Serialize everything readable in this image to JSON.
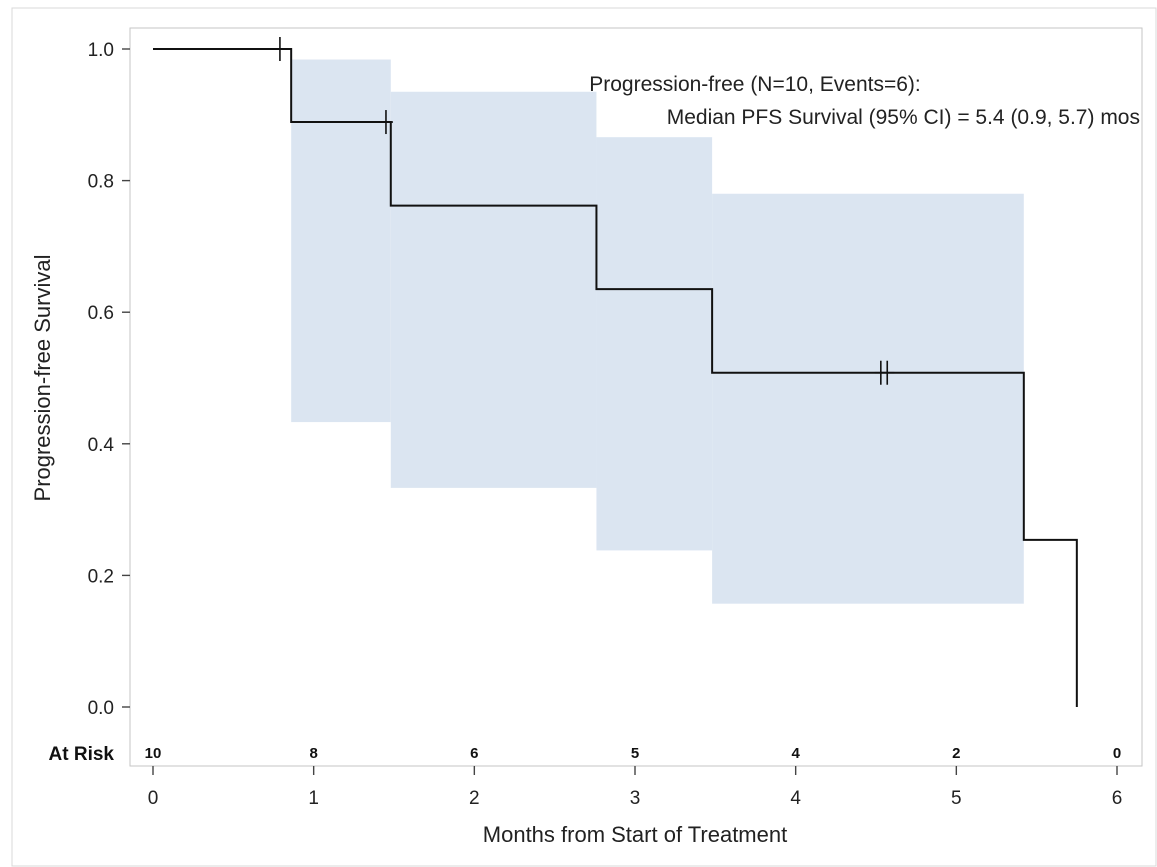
{
  "chart_data": {
    "type": "line",
    "subtype": "kaplan-meier",
    "title": "",
    "xlabel": "Months from Start of Treatment",
    "ylabel": "Progression-free Survival",
    "xlim": [
      0,
      6
    ],
    "ylim": [
      0,
      1
    ],
    "xticks": [
      0,
      1,
      2,
      3,
      4,
      5,
      6
    ],
    "yticks": [
      "0.0",
      "0.2",
      "0.4",
      "0.6",
      "0.8",
      "1.0"
    ],
    "grid": false,
    "legend": "none",
    "line_color": "#111111",
    "band_color": "#dbe5f1",
    "annotation": [
      "Progression-free (N=10, Events=6):",
      "Median PFS Survival (95% CI) = 5.4 (0.9, 5.7) mos"
    ],
    "survival_steps": [
      {
        "x": 0,
        "y": 1.0
      },
      {
        "x": 0.86,
        "y": 0.889
      },
      {
        "x": 1.48,
        "y": 0.762
      },
      {
        "x": 2.76,
        "y": 0.635
      },
      {
        "x": 3.48,
        "y": 0.508
      },
      {
        "x": 5.42,
        "y": 0.254
      },
      {
        "x": 5.75,
        "y": 0.0
      }
    ],
    "censor_marks": [
      {
        "x": 0.79,
        "y": 1.0
      },
      {
        "x": 1.45,
        "y": 0.889
      },
      {
        "x": 4.53,
        "y": 0.508
      },
      {
        "x": 4.57,
        "y": 0.508
      }
    ],
    "confidence_band": [
      {
        "x0": 0.86,
        "x1": 1.48,
        "lower": 0.433,
        "upper": 0.984
      },
      {
        "x0": 1.48,
        "x1": 2.76,
        "lower": 0.333,
        "upper": 0.935
      },
      {
        "x0": 2.76,
        "x1": 3.48,
        "lower": 0.238,
        "upper": 0.866
      },
      {
        "x0": 3.48,
        "x1": 5.42,
        "lower": 0.157,
        "upper": 0.78
      }
    ],
    "at_risk": {
      "label": "At Risk",
      "x": [
        0,
        1,
        2,
        3,
        4,
        5,
        6
      ],
      "counts": [
        "10",
        "8",
        "6",
        "5",
        "4",
        "2",
        "0"
      ]
    }
  }
}
